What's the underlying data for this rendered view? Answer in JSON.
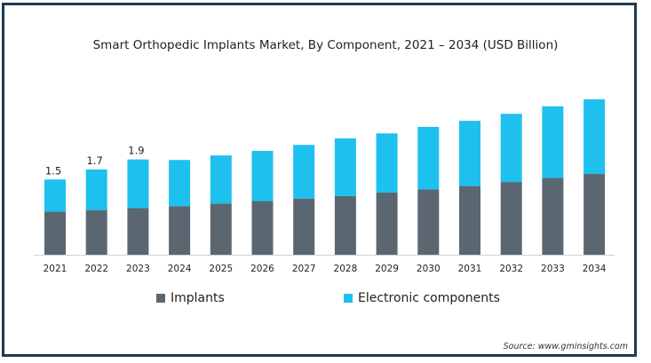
{
  "chart_data": {
    "type": "bar",
    "stacked": true,
    "title": "Smart Orthopedic Implants Market, By Component, 2021 – 2034 (USD Billion)",
    "categories": [
      "2021",
      "2022",
      "2023",
      "2024",
      "2025",
      "2026",
      "2027",
      "2028",
      "2029",
      "2030",
      "2031",
      "2032",
      "2033",
      "2034"
    ],
    "series": [
      {
        "name": "Implants",
        "color": "#5b6770",
        "values": [
          0.86,
          0.89,
          0.93,
          0.97,
          1.02,
          1.07,
          1.12,
          1.17,
          1.24,
          1.3,
          1.37,
          1.45,
          1.53,
          1.61
        ]
      },
      {
        "name": "Electronic components",
        "color": "#1ec0ee",
        "values": [
          0.64,
          0.81,
          0.97,
          0.92,
          0.96,
          1.0,
          1.07,
          1.15,
          1.18,
          1.25,
          1.3,
          1.36,
          1.43,
          1.49
        ]
      }
    ],
    "data_labels": {
      "2021": "1.5",
      "2022": "1.7",
      "2023": "1.9"
    },
    "ylim": [
      0,
      3.3
    ],
    "grid": false,
    "legend": "bottom"
  },
  "source": "Source: www.gminsights.com"
}
